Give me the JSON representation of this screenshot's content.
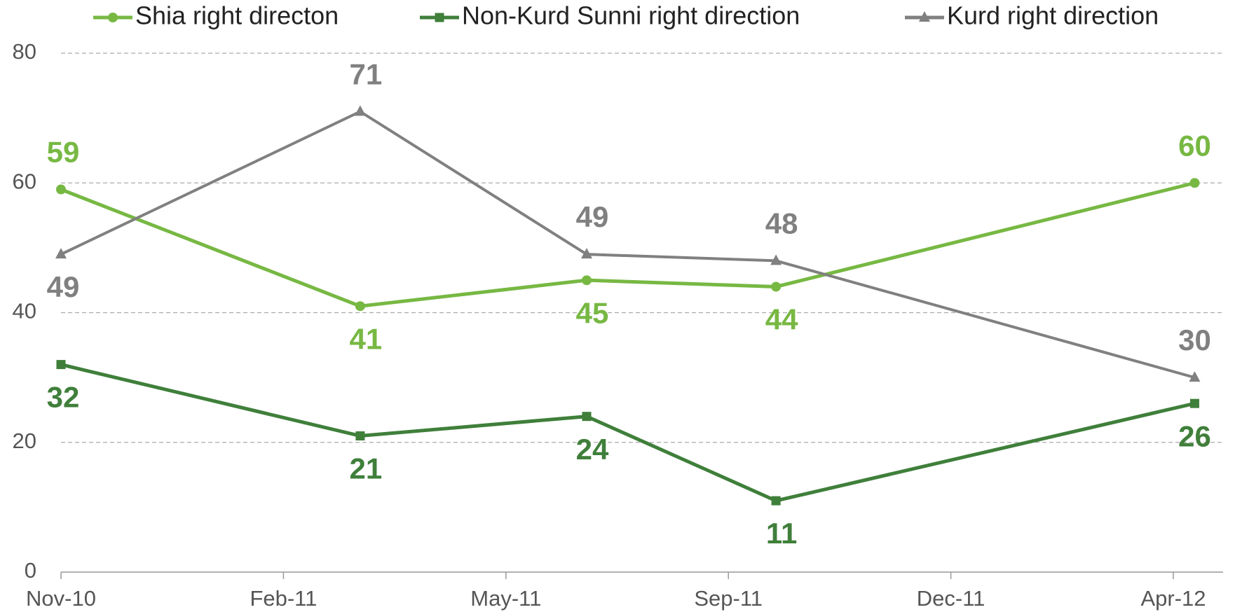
{
  "chart_data": {
    "type": "line",
    "x": [
      0,
      1.345,
      2.363,
      3.214,
      5.096
    ],
    "xlim": [
      0,
      5.22
    ],
    "xticks": [
      {
        "value": 0,
        "label": "Nov-10"
      },
      {
        "value": 1,
        "label": "Feb-11"
      },
      {
        "value": 2,
        "label": "May-11"
      },
      {
        "value": 3,
        "label": "Sep-11"
      },
      {
        "value": 4,
        "label": "Dec-11"
      },
      {
        "value": 5,
        "label": "Apr-12"
      }
    ],
    "ylim": [
      0,
      80
    ],
    "yticks": [
      0,
      20,
      40,
      60,
      80
    ],
    "grid": true,
    "legend": "top",
    "series": [
      {
        "name": "Shia right directon",
        "color": "#77b843",
        "marker": "circle",
        "values": [
          59,
          41,
          45,
          44,
          60
        ]
      },
      {
        "name": "Non-Kurd Sunni right direction",
        "color": "#3f7f3a",
        "marker": "square",
        "values": [
          32,
          21,
          24,
          11,
          26
        ]
      },
      {
        "name": "Kurd right direction",
        "color": "#808080",
        "marker": "triangle",
        "values": [
          49,
          71,
          49,
          48,
          30
        ]
      }
    ]
  }
}
